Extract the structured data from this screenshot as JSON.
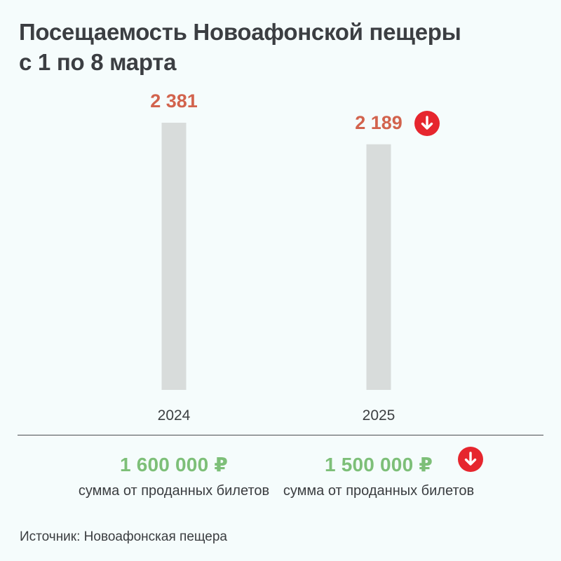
{
  "title_line1": "Посещаемость Новоафонской пещеры",
  "title_line2": "с 1 по 8 марта",
  "chart_data": {
    "type": "bar",
    "categories": [
      "2024",
      "2025"
    ],
    "values": [
      2381,
      2189
    ],
    "value_labels": [
      "2 381",
      "2 189"
    ],
    "title": "Посещаемость Новоафонской пещеры с 1 по 8 марта",
    "xlabel": "",
    "ylabel": "",
    "grid": false,
    "colors": {
      "bar": "#d8dcdb",
      "value_label": "#d2634d"
    }
  },
  "revenue": [
    {
      "year": "2024",
      "amount": "1 600 000 ₽",
      "caption": "сумма от проданных билетов"
    },
    {
      "year": "2025",
      "amount": "1 500 000 ₽",
      "caption": "сумма от проданных билетов"
    }
  ],
  "indicators": {
    "attendance_2025": "arrow-down-icon",
    "revenue_2025": "arrow-down-icon",
    "color": "#e6262e"
  },
  "source": "Источник: Новоафонская пещера"
}
